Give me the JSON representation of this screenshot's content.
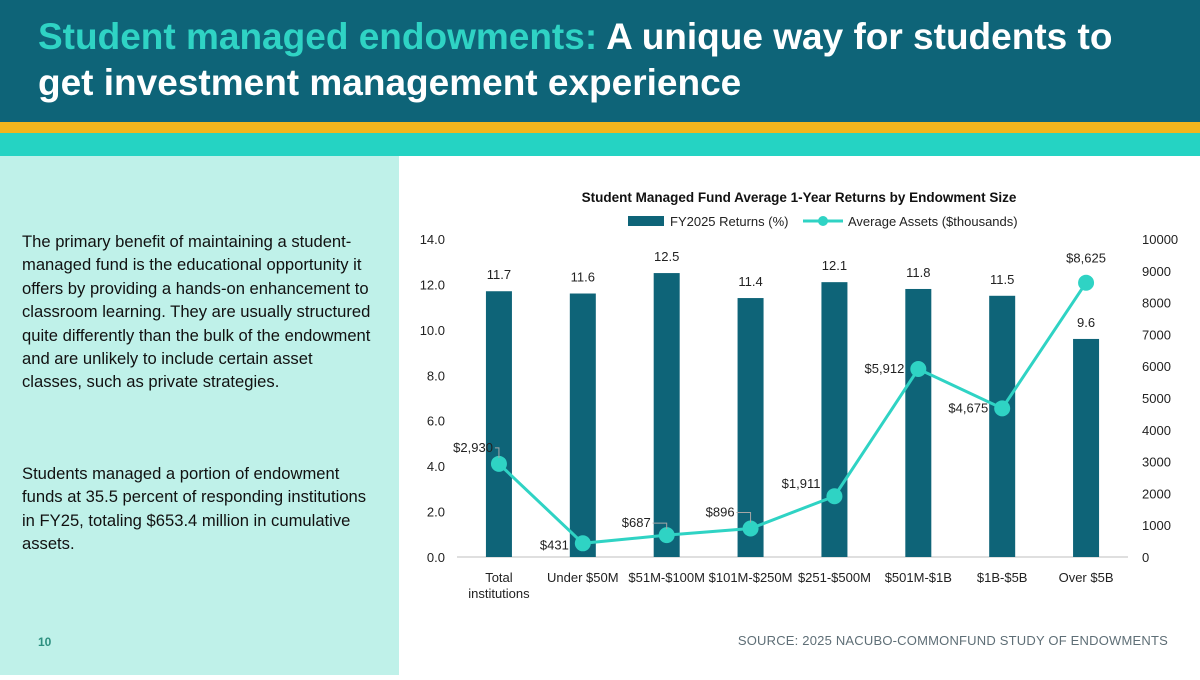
{
  "header": {
    "title_accent": "Student managed endowments:",
    "title_rest": " A unique way for students to get investment management experience"
  },
  "left_panel": {
    "paragraph_1": "The primary benefit of maintaining a student-managed fund is the educational opportunity it offers by providing a hands-on enhancement to classroom learning. They are usually structured quite differently than the bulk of the endowment and are unlikely to include certain asset classes, such as private strategies.",
    "paragraph_2": "Students managed a portion of endowment funds at 35.5 percent of responding institutions in FY25, totaling $653.4 million in cumulative assets.",
    "page_number": "10"
  },
  "source": "SOURCE: 2025 NACUBO-COMMONFUND STUDY OF ENDOWMENTS",
  "colors": {
    "header_bg": "#0e6478",
    "accent": "#2fd3c4",
    "stripe_yellow": "#f2b51d",
    "stripe_teal": "#25d3c3",
    "panel_bg": "#bff1e9",
    "bar": "#0e6478",
    "line": "#2fd3c4"
  },
  "chart_data": {
    "type": "bar",
    "title": "Student Managed Fund Average 1-Year Returns by Endowment Size",
    "categories": [
      "Total\ninstitutions",
      "Under $50M",
      "$51M-$100M",
      "$101M-$250M",
      "$251-$500M",
      "$501M-$1B",
      "$1B-$5B",
      "Over $5B"
    ],
    "series": [
      {
        "name": "FY2025 Returns (%)",
        "type": "bar",
        "axis": "left",
        "values": [
          11.7,
          11.6,
          12.5,
          11.4,
          12.1,
          11.8,
          11.5,
          9.6
        ],
        "labels": [
          "11.7",
          "11.6",
          "12.5",
          "11.4",
          "12.1",
          "11.8",
          "11.5",
          "9.6"
        ]
      },
      {
        "name": "Average Assets ($thousands)",
        "type": "line",
        "axis": "right",
        "values": [
          2930,
          431,
          687,
          896,
          1911,
          5912,
          4675,
          8625
        ],
        "labels": [
          "$2,930",
          "$431",
          "$687",
          "$896",
          "$1,911",
          "$5,912",
          "$4,675",
          "$8,625"
        ]
      }
    ],
    "ylim_left": [
      0,
      14
    ],
    "yticks_left": [
      "0.0",
      "2.0",
      "4.0",
      "6.0",
      "8.0",
      "10.0",
      "12.0",
      "14.0"
    ],
    "ylim_right": [
      0,
      10000
    ],
    "yticks_right": [
      "0",
      "1000",
      "2000",
      "3000",
      "4000",
      "5000",
      "6000",
      "7000",
      "8000",
      "9000",
      "10000"
    ],
    "legend_position": "top-center",
    "grid": false
  }
}
